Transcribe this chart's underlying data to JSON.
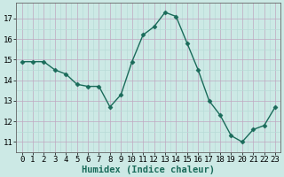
{
  "x": [
    0,
    1,
    2,
    3,
    4,
    5,
    6,
    7,
    8,
    9,
    10,
    11,
    12,
    13,
    14,
    15,
    16,
    17,
    18,
    19,
    20,
    21,
    22,
    23
  ],
  "y": [
    14.9,
    14.9,
    14.9,
    14.5,
    14.3,
    13.8,
    13.7,
    13.7,
    12.7,
    13.3,
    14.9,
    16.2,
    16.6,
    17.3,
    17.1,
    15.8,
    14.5,
    13.0,
    12.3,
    11.3,
    11.0,
    11.6,
    11.8,
    12.7
  ],
  "line_color": "#1a6b5a",
  "marker": "D",
  "markersize": 2.5,
  "linewidth": 1.0,
  "bg_color": "#cce9e5",
  "xlabel": "Humidex (Indice chaleur)",
  "ylim": [
    10.5,
    17.75
  ],
  "xlim": [
    -0.5,
    23.5
  ],
  "yticks": [
    11,
    12,
    13,
    14,
    15,
    16,
    17
  ],
  "xticks": [
    0,
    1,
    2,
    3,
    4,
    5,
    6,
    7,
    8,
    9,
    10,
    11,
    12,
    13,
    14,
    15,
    16,
    17,
    18,
    19,
    20,
    21,
    22,
    23
  ],
  "xlabel_fontsize": 7.5,
  "tick_fontsize": 6.5,
  "grid_major_color": "#c0a8c0",
  "grid_minor_color": "#b8dcd8"
}
